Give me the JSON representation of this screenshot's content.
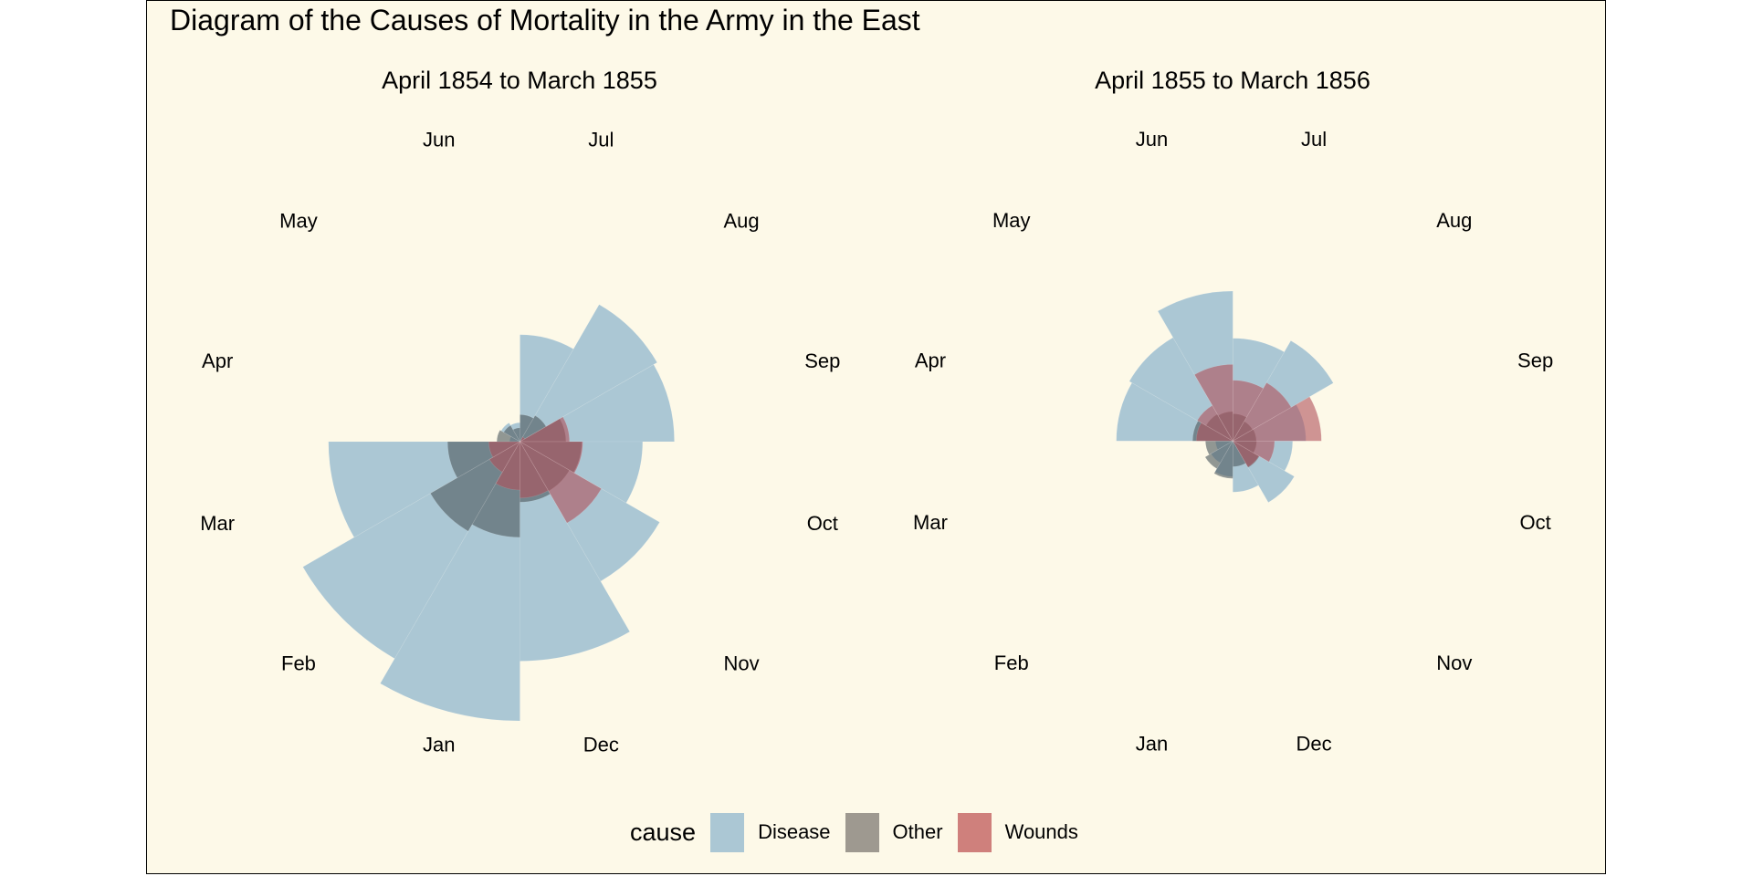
{
  "chart_data": {
    "type": "rose",
    "title": "Diagram of the Causes of Mortality in the Army in the East",
    "scale": "radius proportional to square root of mortality rate (area-proportional)",
    "categories": [
      "Jul",
      "Aug",
      "Sep",
      "Oct",
      "Nov",
      "Dec",
      "Jan",
      "Feb",
      "Mar",
      "Apr",
      "May",
      "Jun"
    ],
    "legend": {
      "title": "cause",
      "position": "bottom",
      "entries": [
        {
          "name": "Disease",
          "color": "#ABC7D4"
        },
        {
          "name": "Other",
          "color": "#9E9990"
        },
        {
          "name": "Wounds",
          "color": "#CF807C"
        }
      ]
    },
    "facets": [
      {
        "title": "April 1854 to March 1855",
        "series": [
          {
            "name": "Disease",
            "values": [
              150.0,
              328.5,
              312.2,
              197.0,
              340.6,
              631.5,
              1022.8,
              822.8,
              480.3,
              1.4,
              6.2,
              4.7
            ]
          },
          {
            "name": "Other",
            "values": [
              9.6,
              11.9,
              27.7,
              50.1,
              42.8,
              48.0,
              120.0,
              140.1,
              68.6,
              7.0,
              4.6,
              2.5
            ]
          },
          {
            "name": "Wounds",
            "values": [
              0.0,
              0.4,
              32.1,
              51.7,
              115.8,
              41.7,
              30.7,
              16.3,
              12.8,
              0.0,
              0.0,
              0.0
            ]
          }
        ]
      },
      {
        "title": "April 1855 to March 1856",
        "series": [
          {
            "name": "Disease",
            "values": [
              138.4,
              176.1,
              69.9,
              46.8,
              65.9,
              34.2,
              16.6,
              8.3,
              3.9,
              177.8,
              187.1,
              294.7
            ]
          },
          {
            "name": "Other",
            "values": [
              9.8,
              6.8,
              7.2,
              7.4,
              12.3,
              8.6,
              18.4,
              13.4,
              9.8,
              21.2,
              12.6,
              11.4
            ]
          },
          {
            "name": "Wounds",
            "values": [
              48.4,
              59.5,
              102.7,
              22.8,
              11.9,
              0.0,
              0.0,
              0.0,
              0.0,
              17.5,
              22.1,
              77.0
            ]
          }
        ]
      }
    ]
  }
}
